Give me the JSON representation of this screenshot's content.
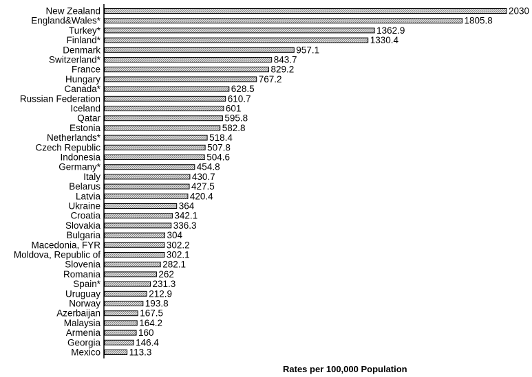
{
  "chart_data": {
    "type": "bar",
    "orientation": "horizontal",
    "title": "",
    "xlabel": "Rates per 100,000 Population",
    "ylabel": "",
    "xlim": [
      0,
      2030
    ],
    "grid": false,
    "legend": "none",
    "bar_color": "#bdbdbd",
    "bar_outline": "#000000",
    "categories": [
      "New Zealand",
      "England&Wales*",
      "Turkey*",
      "Finland*",
      "Denmark",
      "Switzerland*",
      "France",
      "Hungary",
      "Canada*",
      "Russian Federation",
      "Iceland",
      "Qatar",
      "Estonia",
      "Netherlands*",
      "Czech Republic",
      "Indonesia",
      "Germany*",
      "Italy",
      "Belarus",
      "Latvia",
      "Ukraine",
      "Croatia",
      "Slovakia",
      "Bulgaria",
      "Macedonia, FYR",
      "Moldova, Republic of",
      "Slovenia",
      "Romania",
      "Spain*",
      "Uruguay",
      "Norway",
      "Azerbaijan",
      "Malaysia",
      "Armenia",
      "Georgia",
      "Mexico"
    ],
    "values": [
      2030,
      1805.8,
      1362.9,
      1330.4,
      957.1,
      843.7,
      829.2,
      767.2,
      628.5,
      610.7,
      601,
      595.8,
      582.8,
      518.4,
      507.8,
      504.6,
      454.8,
      430.7,
      427.5,
      420.4,
      364,
      342.1,
      336.3,
      304,
      302.2,
      302.1,
      282.1,
      262,
      231.3,
      212.9,
      193.8,
      167.5,
      164.2,
      160,
      146.4,
      113.3
    ],
    "value_labels": [
      "2030",
      "1805.8",
      "1362.9",
      "1330.4",
      "957.1",
      "843.7",
      "829.2",
      "767.2",
      "628.5",
      "610.7",
      "601",
      "595.8",
      "582.8",
      "518.4",
      "507.8",
      "504.6",
      "454.8",
      "430.7",
      "427.5",
      "420.4",
      "364",
      "342.1",
      "336.3",
      "304",
      "302.2",
      "302.1",
      "282.1",
      "262",
      "231.3",
      "212.9",
      "193.8",
      "167.5",
      "164.2",
      "160",
      "146.4",
      "113.3"
    ]
  }
}
